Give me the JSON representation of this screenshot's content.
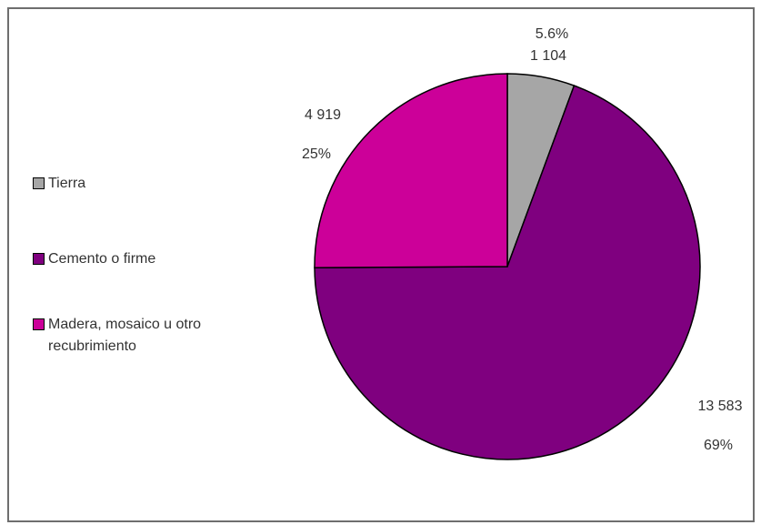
{
  "chart_data": {
    "type": "pie",
    "title": "",
    "slices": [
      {
        "name": "Tierra",
        "value": 1104,
        "value_label": "1 104",
        "percent_label": "5.6%",
        "color": "#a6a6a6"
      },
      {
        "name": "Cemento o firme",
        "value": 13583,
        "value_label": "13 583",
        "percent_label": "69%",
        "color": "#7f007f"
      },
      {
        "name": "Madera, mosaico u otro recubrimiento",
        "value": 4919,
        "value_label": "4 919",
        "percent_label": "25%",
        "color": "#cc0099"
      }
    ],
    "legend": {
      "placement": "left",
      "items": [
        "Tierra",
        "Cemento o firme",
        "Madera, mosaico u otro recubrimiento"
      ]
    },
    "start_angle_deg": 0,
    "direction": "clockwise"
  }
}
